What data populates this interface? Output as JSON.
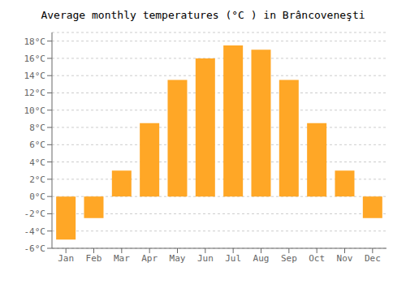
{
  "chart_data": {
    "type": "bar",
    "title": "Average monthly temperatures (°C ) in Brâncoveneşti",
    "categories": [
      "Jan",
      "Feb",
      "Mar",
      "Apr",
      "May",
      "Jun",
      "Jul",
      "Aug",
      "Sep",
      "Oct",
      "Nov",
      "Dec"
    ],
    "values": [
      -5.0,
      -2.5,
      3.0,
      8.5,
      13.5,
      16.0,
      17.5,
      17.0,
      13.5,
      8.5,
      3.0,
      -2.5
    ],
    "color": "#FFA726",
    "ylim": [
      -6,
      19
    ],
    "yticks": [
      {
        "value": -6,
        "label": "-6°C"
      },
      {
        "value": -4,
        "label": "-4°C"
      },
      {
        "value": -2,
        "label": "-2°C"
      },
      {
        "value": 0,
        "label": "0°C"
      },
      {
        "value": 2,
        "label": "2°C"
      },
      {
        "value": 4,
        "label": "4°C"
      },
      {
        "value": 6,
        "label": "6°C"
      },
      {
        "value": 8,
        "label": "8°C"
      },
      {
        "value": 10,
        "label": "10°C"
      },
      {
        "value": 12,
        "label": "12°C"
      },
      {
        "value": 14,
        "label": "14°C"
      },
      {
        "value": 16,
        "label": "16°C"
      },
      {
        "value": 18,
        "label": "18°C"
      }
    ],
    "grid": true
  }
}
